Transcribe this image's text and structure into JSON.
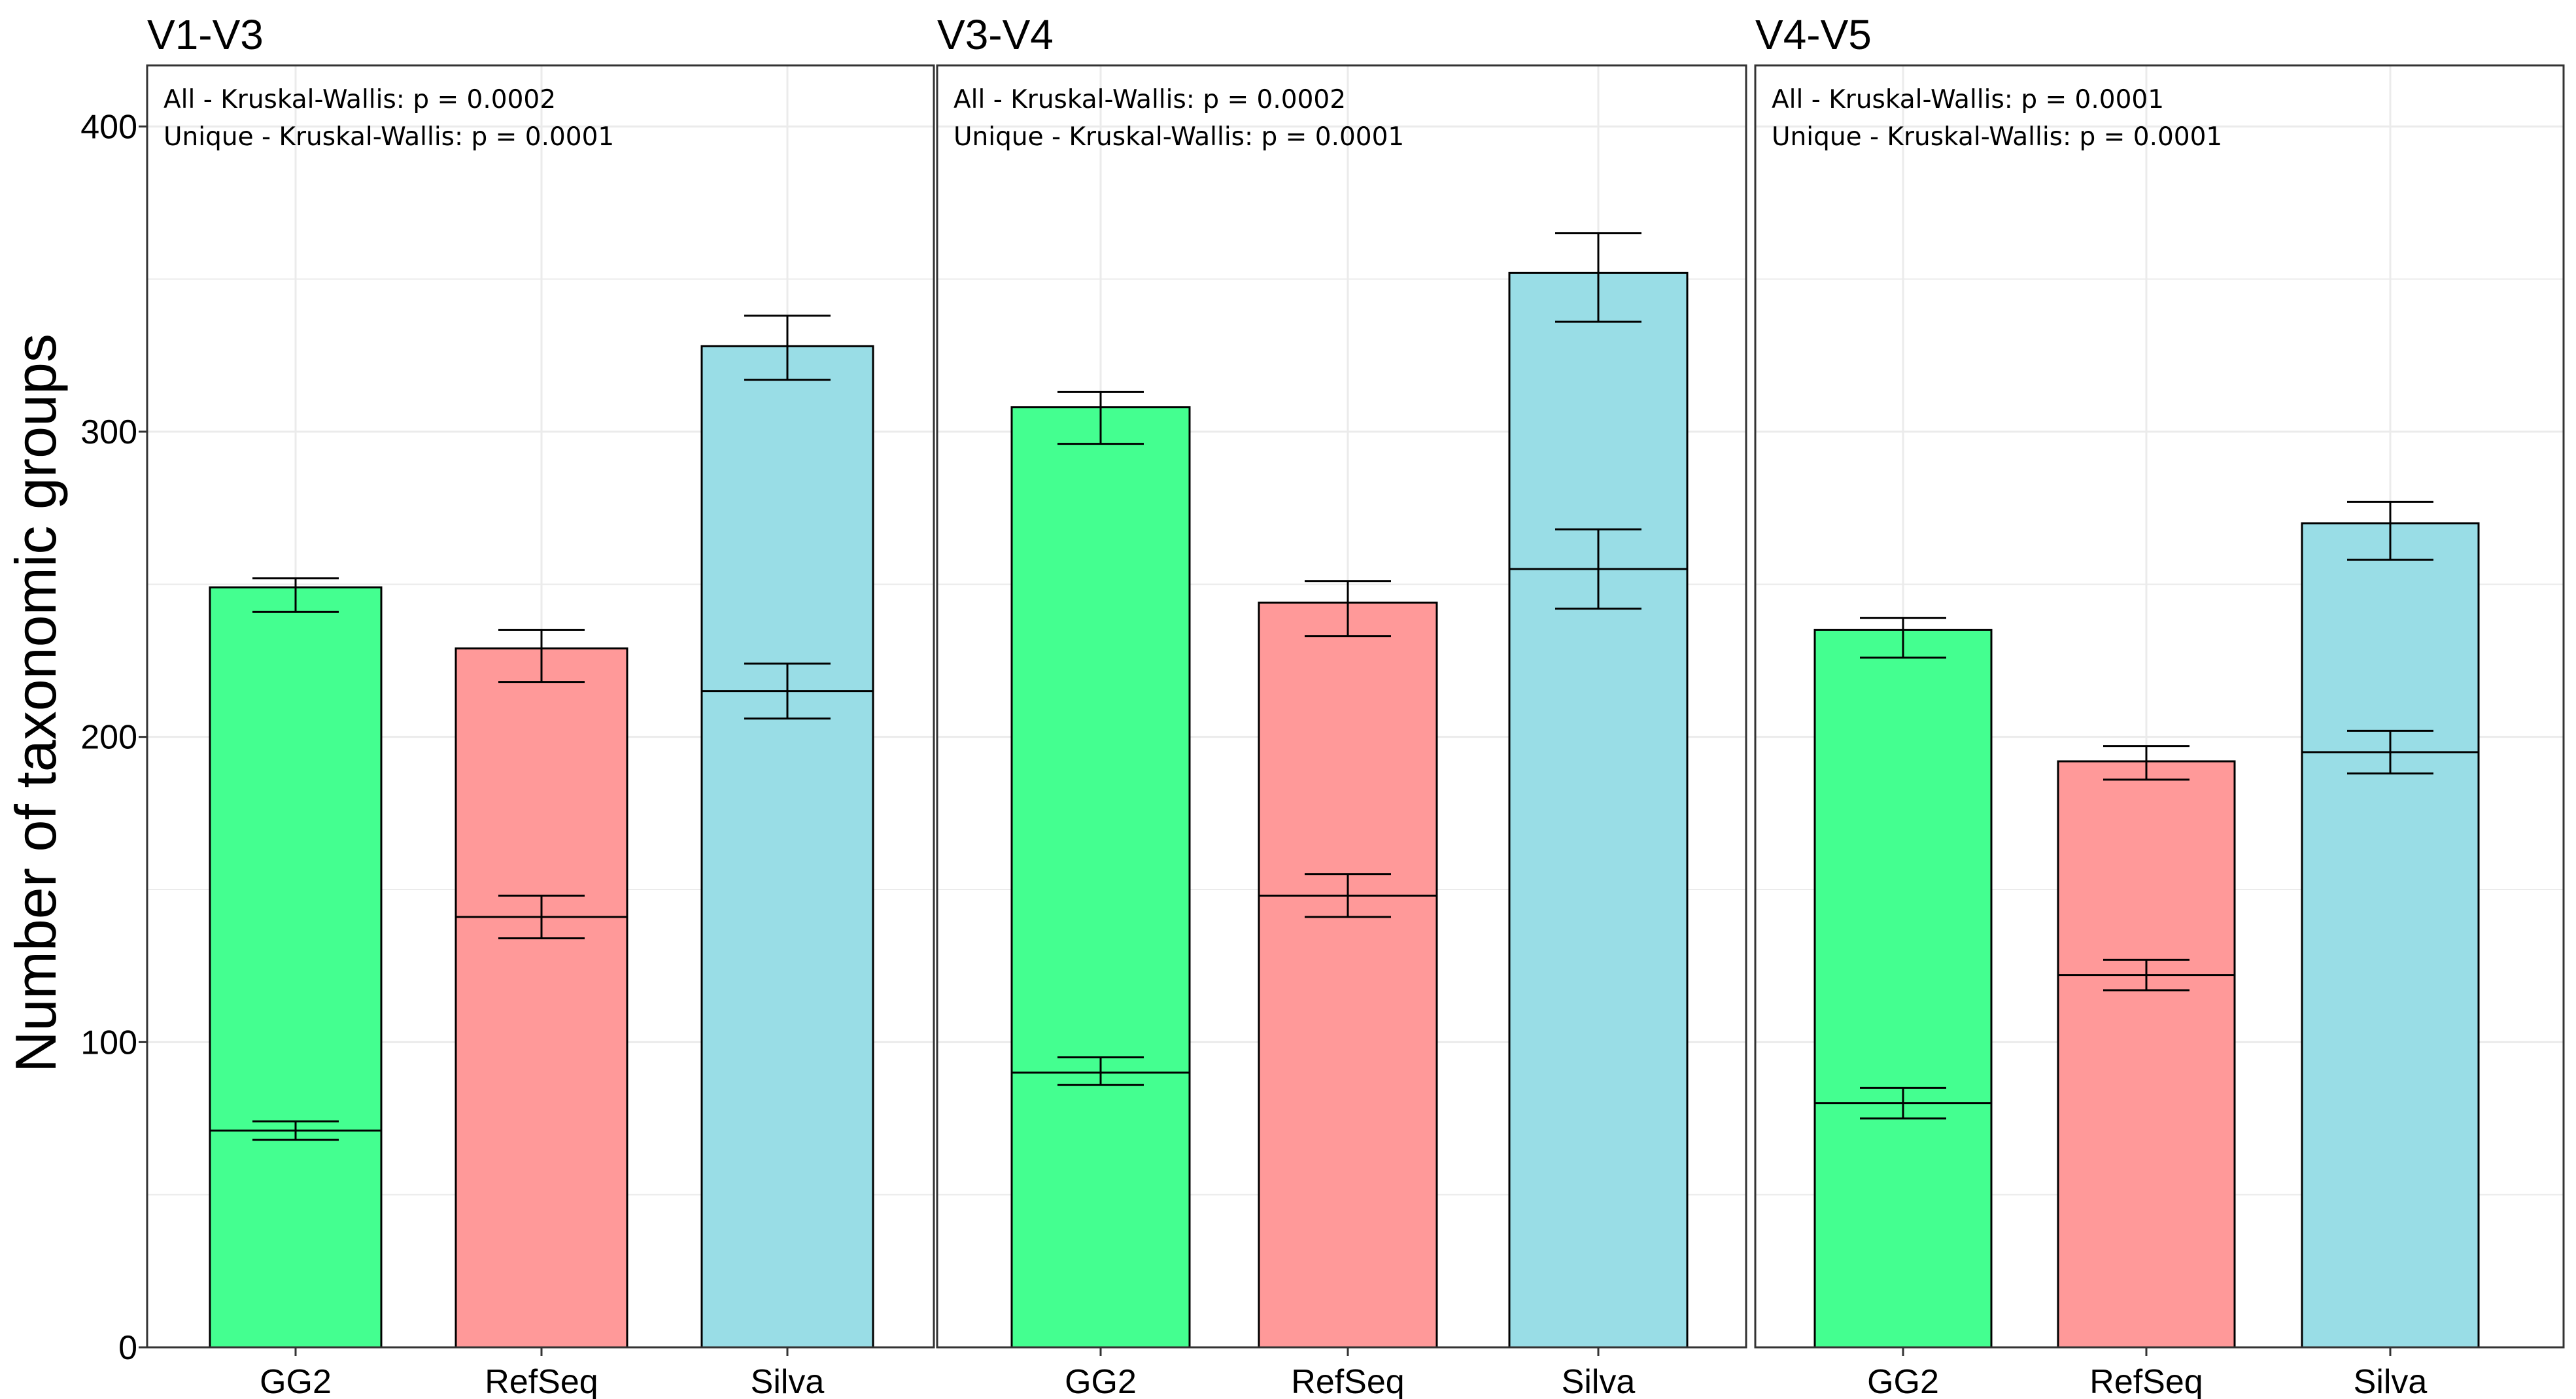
{
  "chart_data": {
    "type": "bar",
    "layout": "faceted-stacked",
    "ylabel": "Number of taxonomic groups",
    "ylim": [
      0,
      420
    ],
    "yticks": [
      0,
      100,
      200,
      300,
      400
    ],
    "categories": [
      "GG2",
      "RefSeq",
      "Silva"
    ],
    "colors": {
      "GG2": "#44ff90",
      "RefSeq": "#ff9999",
      "Silva": "#99dde6",
      "outline": "#000000",
      "grid": "#ebebeb"
    },
    "panels": [
      {
        "title": "V1-V3",
        "annotations": [
          "All - Kruskal-Wallis: p = 0.0002",
          "Unique - Kruskal-Wallis: p = 0.0001"
        ],
        "series": [
          {
            "name": "All",
            "values": [
              249,
              229,
              328
            ],
            "err_low": [
              241,
              218,
              317
            ],
            "err_high": [
              252,
              235,
              338
            ]
          },
          {
            "name": "Unique",
            "values": [
              71,
              141,
              215
            ],
            "err_low": [
              68,
              134,
              206
            ],
            "err_high": [
              74,
              148,
              224
            ]
          }
        ]
      },
      {
        "title": "V3-V4",
        "annotations": [
          "All - Kruskal-Wallis: p = 0.0002",
          "Unique - Kruskal-Wallis: p = 0.0001"
        ],
        "series": [
          {
            "name": "All",
            "values": [
              308,
              244,
              352
            ],
            "err_low": [
              296,
              233,
              336
            ],
            "err_high": [
              313,
              251,
              365
            ]
          },
          {
            "name": "Unique",
            "values": [
              90,
              148,
              255
            ],
            "err_low": [
              86,
              141,
              242
            ],
            "err_high": [
              95,
              155,
              268
            ]
          }
        ]
      },
      {
        "title": "V4-V5",
        "annotations": [
          "All - Kruskal-Wallis: p = 0.0001",
          "Unique - Kruskal-Wallis: p = 0.0001"
        ],
        "series": [
          {
            "name": "All",
            "values": [
              235,
              192,
              270
            ],
            "err_low": [
              226,
              186,
              258
            ],
            "err_high": [
              239,
              197,
              277
            ]
          },
          {
            "name": "Unique",
            "values": [
              80,
              122,
              195
            ],
            "err_low": [
              75,
              117,
              188
            ],
            "err_high": [
              85,
              127,
              202
            ]
          }
        ]
      }
    ]
  }
}
